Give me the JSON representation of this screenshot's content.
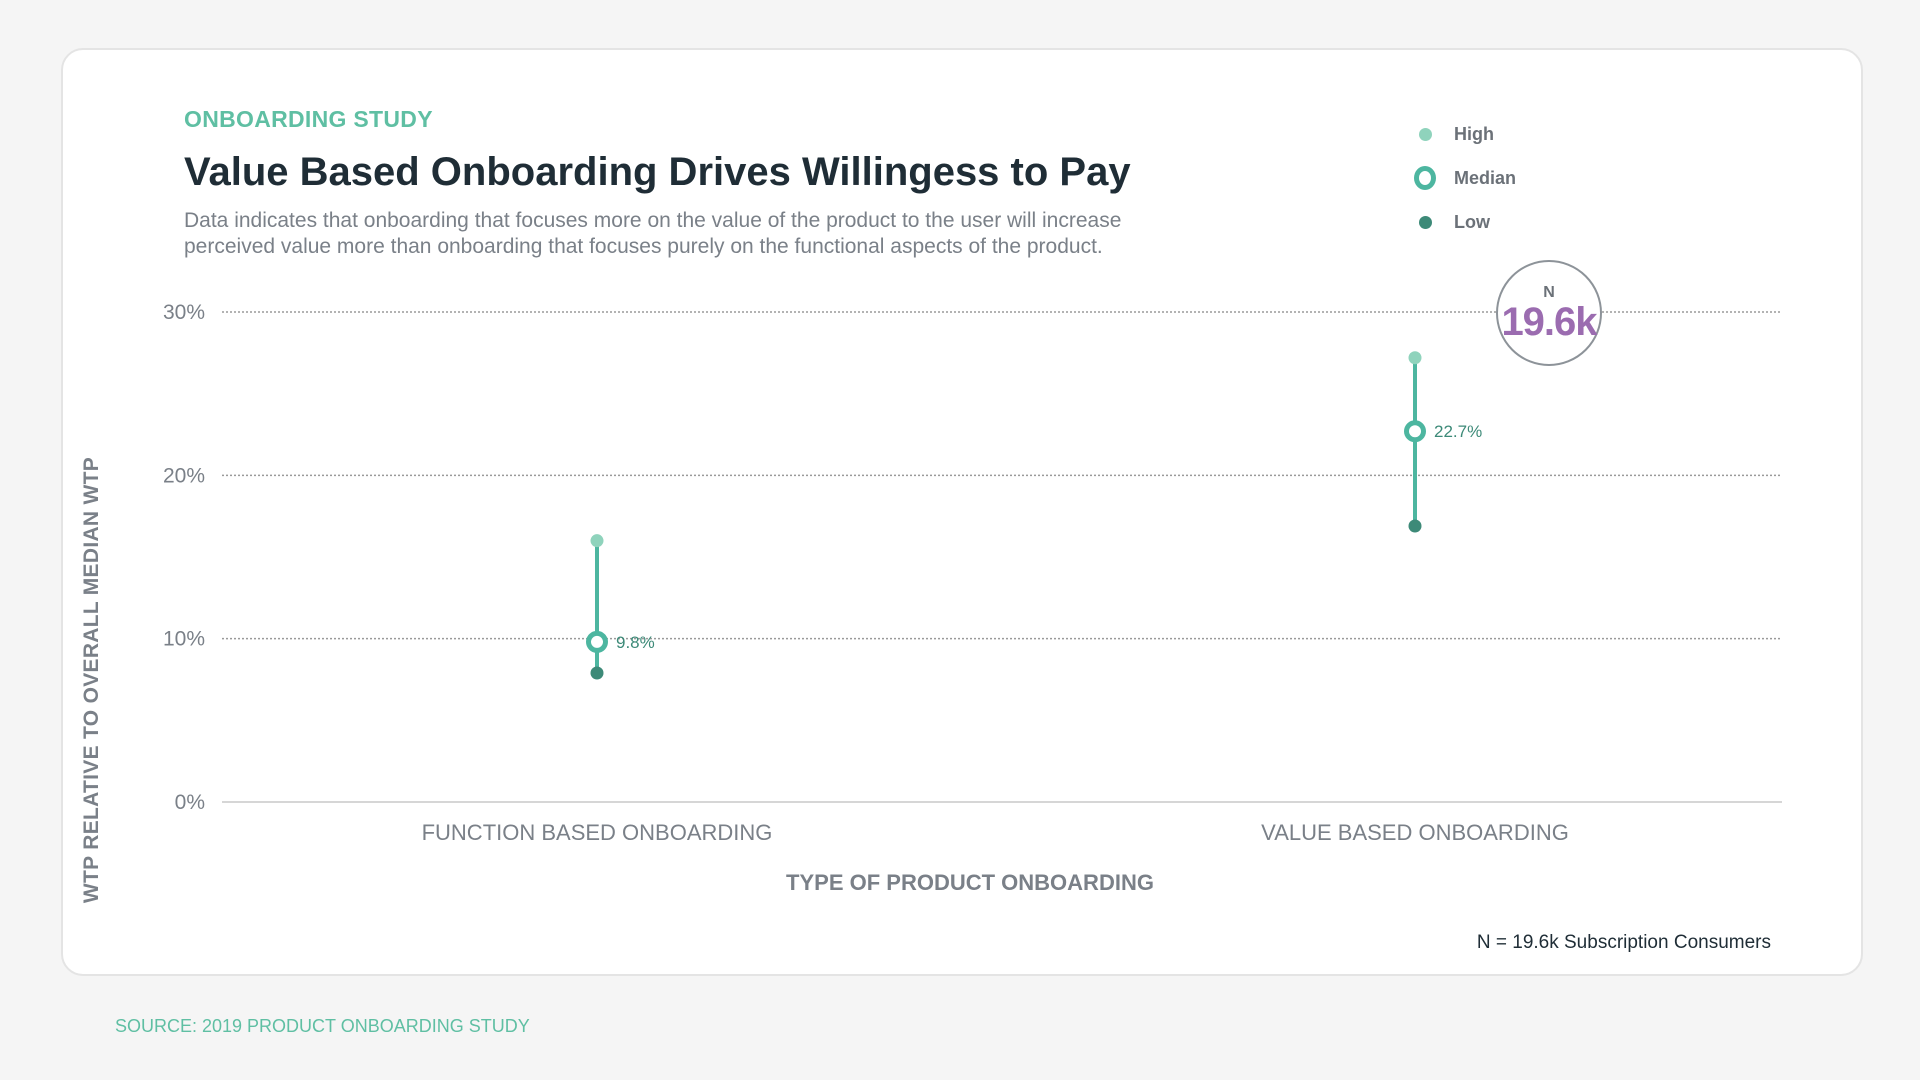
{
  "eyebrow": "ONBOARDING STUDY",
  "title": "Value Based Onboarding Drives Willingess to Pay",
  "subtitle": "Data indicates that onboarding that focuses more on the value of the product to the user will increase perceived value more than onboarding that focuses purely on the functional aspects of the product.",
  "legend": {
    "high": "High",
    "median": "Median",
    "low": "Low"
  },
  "badge": {
    "label": "N",
    "value": "19.6k"
  },
  "footnote": "N = 19.6k Subscription Consumers",
  "source": "SOURCE: 2019 PRODUCT ONBOARDING STUDY",
  "colors": {
    "high": "#8fd3bc",
    "median": "#4db6a0",
    "low": "#3d8a78",
    "accent_text": "#5fbfa3",
    "badge_value": "#9b6cb0",
    "value_label": "#3d8a78",
    "gridline": "#9a9a9a"
  },
  "chart_data": {
    "type": "range",
    "xlabel": "TYPE OF PRODUCT ONBOARDING",
    "ylabel": "WTP RELATIVE TO OVERALL MEDIAN WTP",
    "ylim": [
      0,
      30
    ],
    "yticks": [
      0,
      10,
      20,
      30
    ],
    "ytick_labels": [
      "0%",
      "10%",
      "20%",
      "30%"
    ],
    "grid": true,
    "legend_position": "top-right",
    "categories": [
      "FUNCTION BASED ONBOARDING",
      "VALUE BASED ONBOARDING"
    ],
    "series": [
      {
        "name": "High",
        "values": [
          16.0,
          27.2
        ]
      },
      {
        "name": "Median",
        "values": [
          9.8,
          22.7
        ]
      },
      {
        "name": "Low",
        "values": [
          7.9,
          16.9
        ]
      }
    ],
    "median_labels": [
      "9.8%",
      "22.7%"
    ]
  }
}
